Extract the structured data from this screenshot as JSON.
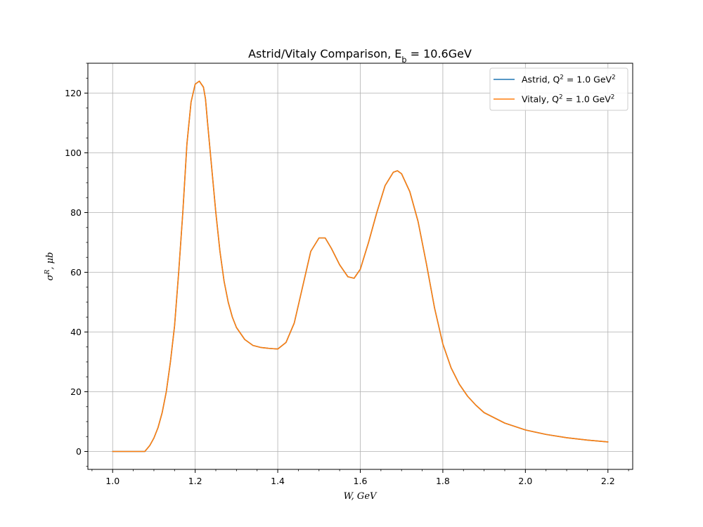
{
  "chart_data": {
    "type": "line",
    "title": "Astrid/Vitaly Comparison, E_b = 10.6GeV",
    "xlabel": "W, GeV",
    "ylabel": "σ^R, μb",
    "xlim": [
      0.94,
      2.26
    ],
    "ylim": [
      -6,
      130
    ],
    "xticks": [
      "1.0",
      "1.2",
      "1.4",
      "1.6",
      "1.8",
      "2.0",
      "2.2"
    ],
    "yticks": [
      "0",
      "20",
      "40",
      "60",
      "80",
      "100",
      "120"
    ],
    "grid": true,
    "legend_position": "top-right",
    "series": [
      {
        "name": "Astrid, Q^2 = 1.0 GeV^2",
        "color": "#1f77b4",
        "x": [
          1.0,
          1.04,
          1.078,
          1.09,
          1.1,
          1.11,
          1.12,
          1.13,
          1.14,
          1.15,
          1.16,
          1.17,
          1.18,
          1.19,
          1.2,
          1.21,
          1.22,
          1.225,
          1.23,
          1.24,
          1.25,
          1.26,
          1.27,
          1.28,
          1.29,
          1.3,
          1.32,
          1.34,
          1.36,
          1.38,
          1.4,
          1.42,
          1.44,
          1.46,
          1.48,
          1.5,
          1.515,
          1.53,
          1.55,
          1.57,
          1.585,
          1.6,
          1.62,
          1.64,
          1.66,
          1.68,
          1.69,
          1.7,
          1.72,
          1.74,
          1.76,
          1.78,
          1.8,
          1.82,
          1.84,
          1.86,
          1.88,
          1.9,
          1.95,
          2.0,
          2.05,
          2.1,
          2.15,
          2.2
        ],
        "y": [
          0,
          0,
          0,
          2,
          4.5,
          8,
          13,
          20,
          30,
          42,
          60,
          80,
          103,
          117,
          123,
          124,
          122,
          118,
          110,
          95,
          80,
          67,
          57,
          50,
          45,
          41.5,
          37.5,
          35.5,
          34.8,
          34.5,
          34.3,
          36.5,
          43,
          55,
          67,
          71.5,
          71.5,
          68,
          62.5,
          58.5,
          58,
          61,
          70,
          80,
          89,
          93.5,
          94,
          93,
          87,
          77,
          63,
          48,
          36,
          28,
          22.5,
          18.5,
          15.5,
          13,
          9.5,
          7.2,
          5.7,
          4.6,
          3.8,
          3.2
        ]
      },
      {
        "name": "Vitaly, Q^2 = 1.0 GeV^2",
        "color": "#ff7f0e",
        "x": [
          1.0,
          1.04,
          1.078,
          1.09,
          1.1,
          1.11,
          1.12,
          1.13,
          1.14,
          1.15,
          1.16,
          1.17,
          1.18,
          1.19,
          1.2,
          1.21,
          1.22,
          1.225,
          1.23,
          1.24,
          1.25,
          1.26,
          1.27,
          1.28,
          1.29,
          1.3,
          1.32,
          1.34,
          1.36,
          1.38,
          1.4,
          1.42,
          1.44,
          1.46,
          1.48,
          1.5,
          1.515,
          1.53,
          1.55,
          1.57,
          1.585,
          1.6,
          1.62,
          1.64,
          1.66,
          1.68,
          1.69,
          1.7,
          1.72,
          1.74,
          1.76,
          1.78,
          1.8,
          1.82,
          1.84,
          1.86,
          1.88,
          1.9,
          1.95,
          2.0,
          2.05,
          2.1,
          2.15,
          2.2
        ],
        "y": [
          0,
          0,
          0,
          2,
          4.5,
          8,
          13,
          20,
          30,
          42,
          60,
          80,
          103,
          117,
          123,
          124,
          122,
          118,
          110,
          95,
          80,
          67,
          57,
          50,
          45,
          41.5,
          37.5,
          35.5,
          34.8,
          34.5,
          34.3,
          36.5,
          43,
          55,
          67,
          71.5,
          71.5,
          68,
          62.5,
          58.5,
          58,
          61,
          70,
          80,
          89,
          93.5,
          94,
          93,
          87,
          77,
          63,
          48,
          36,
          28,
          22.5,
          18.5,
          15.5,
          13,
          9.5,
          7.2,
          5.7,
          4.6,
          3.8,
          3.2
        ]
      }
    ]
  }
}
